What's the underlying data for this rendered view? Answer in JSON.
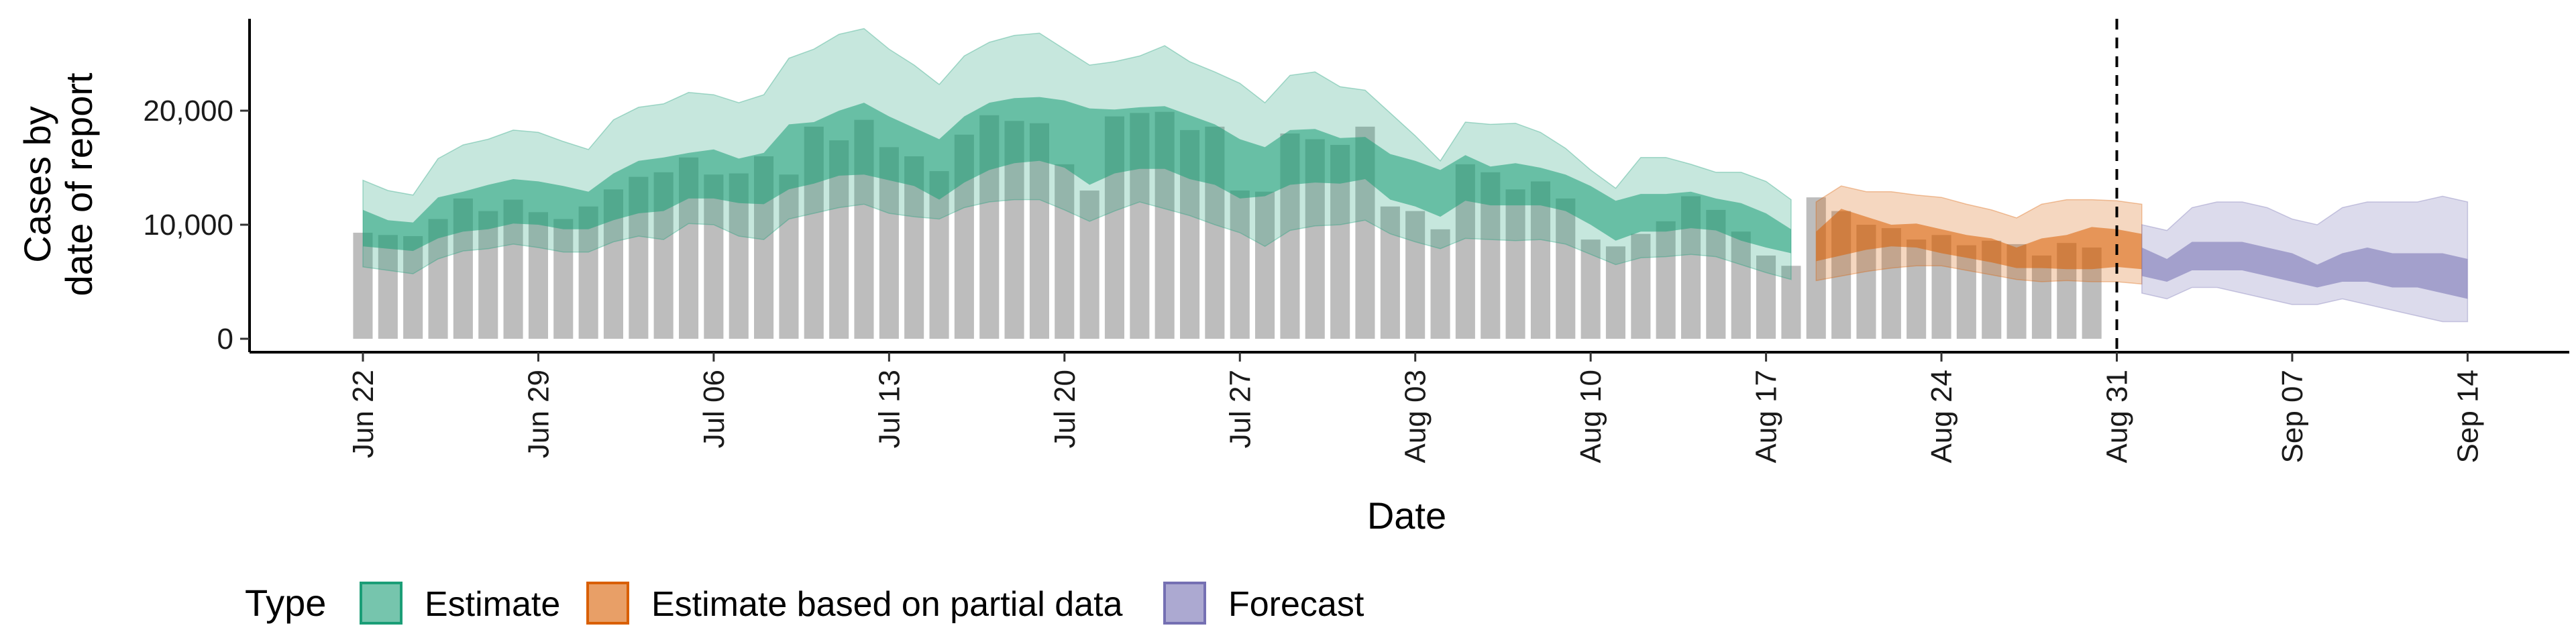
{
  "chart_data": {
    "type": "bar",
    "xlabel": "Date",
    "ylabel_line1": "Cases by",
    "ylabel_line2": "date of report",
    "ylim": [
      0,
      28000
    ],
    "y_ticks": [
      0,
      10000,
      20000
    ],
    "y_tick_labels": [
      "0",
      "10,000",
      "20,000"
    ],
    "x_range": [
      "2020-06-22",
      "2020-09-14"
    ],
    "x_ticks": [
      "2020-06-22",
      "2020-06-29",
      "2020-07-06",
      "2020-07-13",
      "2020-07-20",
      "2020-07-27",
      "2020-08-03",
      "2020-08-10",
      "2020-08-17",
      "2020-08-24",
      "2020-08-31",
      "2020-09-07",
      "2020-09-14"
    ],
    "x_tick_labels": [
      "Jun 22",
      "Jun 29",
      "Jul 06",
      "Jul 13",
      "Jul 20",
      "Jul 27",
      "Aug 03",
      "Aug 10",
      "Aug 17",
      "Aug 24",
      "Aug 31",
      "Sep 07",
      "Sep 14"
    ],
    "vline_date": "2020-08-31",
    "bars": {
      "start_date": "2020-06-22",
      "values": [
        9300,
        9100,
        9000,
        10500,
        12300,
        11200,
        12200,
        11100,
        10500,
        11600,
        13100,
        14200,
        14600,
        15900,
        14400,
        14500,
        16000,
        14400,
        18600,
        17400,
        19200,
        16800,
        16000,
        14700,
        17900,
        19600,
        19100,
        18900,
        15300,
        13000,
        19500,
        19800,
        19900,
        18300,
        18600,
        13000,
        12900,
        18000,
        17500,
        17000,
        18600,
        11600,
        11200,
        9600,
        15300,
        14600,
        13100,
        13800,
        12300,
        8700,
        8100,
        9200,
        10300,
        12500,
        11300,
        9400,
        7300,
        6400,
        12400,
        11200,
        10000,
        9700,
        8700,
        9100,
        8200,
        8600,
        8300,
        7300,
        8400,
        8000
      ]
    },
    "series": [
      {
        "name": "Estimate",
        "color": "#1B9E77",
        "start_date": "2020-06-22",
        "outer_lower": [
          6300,
          6000,
          5700,
          7000,
          7700,
          7900,
          8300,
          8000,
          7600,
          7600,
          8500,
          9000,
          8700,
          10100,
          10000,
          9000,
          8700,
          10500,
          11000,
          11500,
          11800,
          11000,
          10700,
          10500,
          11500,
          12000,
          12200,
          12200,
          11300,
          10300,
          11200,
          12000,
          11400,
          10800,
          10000,
          9300,
          8100,
          9500,
          9900,
          10000,
          10400,
          9200,
          8500,
          7900,
          8800,
          8700,
          8600,
          8700,
          8300,
          7400,
          6500,
          7100,
          7200,
          7400,
          7200,
          6500,
          5800,
          5200
        ],
        "inner_lower": [
          8100,
          7900,
          7700,
          8800,
          9400,
          9600,
          10100,
          10000,
          9600,
          9600,
          10400,
          11000,
          11200,
          12300,
          12300,
          11900,
          11800,
          13100,
          13600,
          14300,
          14400,
          13900,
          13400,
          12200,
          13700,
          14800,
          15400,
          15600,
          15000,
          13500,
          14500,
          14900,
          14900,
          14000,
          13500,
          12300,
          12500,
          13500,
          13700,
          13600,
          14000,
          12200,
          11600,
          10700,
          12100,
          11700,
          11700,
          11700,
          11200,
          10000,
          8600,
          9400,
          9400,
          9700,
          9500,
          8600,
          8000,
          7500
        ],
        "inner_upper": [
          11300,
          10400,
          10200,
          12400,
          12900,
          13500,
          14000,
          13800,
          13400,
          12900,
          14500,
          15600,
          15900,
          16300,
          16600,
          15800,
          16300,
          18800,
          19000,
          20000,
          20700,
          19500,
          18500,
          17500,
          19500,
          20700,
          21100,
          21200,
          20900,
          20200,
          20100,
          20300,
          20400,
          19600,
          18800,
          17500,
          16800,
          18300,
          18400,
          17600,
          17700,
          16200,
          15600,
          14800,
          16100,
          15100,
          15400,
          15000,
          14400,
          13400,
          12100,
          12700,
          12700,
          12900,
          12300,
          11900,
          11000,
          9600
        ],
        "outer_upper": [
          13900,
          13000,
          12600,
          15800,
          17000,
          17500,
          18300,
          18100,
          17300,
          16600,
          19200,
          20300,
          20600,
          21600,
          21400,
          20700,
          21400,
          24600,
          25400,
          26700,
          27200,
          25400,
          24000,
          22300,
          24800,
          26000,
          26600,
          26800,
          25400,
          24000,
          24300,
          24800,
          25700,
          24300,
          23400,
          22400,
          20700,
          23100,
          23400,
          22100,
          21800,
          19800,
          17800,
          15600,
          19000,
          18800,
          18900,
          18100,
          16700,
          14800,
          13200,
          15900,
          15900,
          15300,
          14600,
          14600,
          13800,
          12200
        ]
      },
      {
        "name": "Estimate based on partial data",
        "color": "#D95F02",
        "start_date": "2020-08-19",
        "outer_lower": [
          5100,
          5500,
          5900,
          6200,
          6400,
          6400,
          6000,
          5600,
          5200,
          5000,
          5100,
          5000,
          5000,
          4800
        ],
        "inner_lower": [
          6800,
          7300,
          7800,
          8100,
          8000,
          7500,
          7100,
          6700,
          6200,
          6200,
          6100,
          6100,
          6300,
          6100
        ],
        "inner_upper": [
          9400,
          11400,
          10700,
          10000,
          10100,
          9600,
          9100,
          8800,
          8000,
          8800,
          9100,
          9800,
          9600,
          9200
        ],
        "outer_upper": [
          12000,
          13400,
          12900,
          12900,
          12600,
          12400,
          11800,
          11300,
          10600,
          11800,
          12200,
          12200,
          12100,
          11800
        ]
      },
      {
        "name": "Forecast",
        "color": "#7570B3",
        "start_date": "2020-09-01",
        "outer_lower": [
          4000,
          3500,
          4500,
          4500,
          4000,
          3500,
          3000,
          3000,
          3500,
          3000,
          2500,
          2000,
          1500,
          1500
        ],
        "inner_lower": [
          5500,
          5000,
          6000,
          6000,
          6000,
          5500,
          5000,
          4500,
          5000,
          5000,
          4500,
          4500,
          4000,
          3500
        ],
        "inner_upper": [
          8000,
          7000,
          8500,
          8500,
          8500,
          8000,
          7500,
          6500,
          7500,
          8000,
          7500,
          7500,
          7500,
          7000
        ],
        "outer_upper": [
          10000,
          9500,
          11500,
          12000,
          12000,
          11500,
          10500,
          10000,
          11500,
          12000,
          12000,
          12000,
          12500,
          12000
        ]
      }
    ],
    "legend": {
      "placement": "bottom",
      "title": "Type",
      "items": [
        "Estimate",
        "Estimate based on partial data",
        "Forecast"
      ]
    }
  }
}
